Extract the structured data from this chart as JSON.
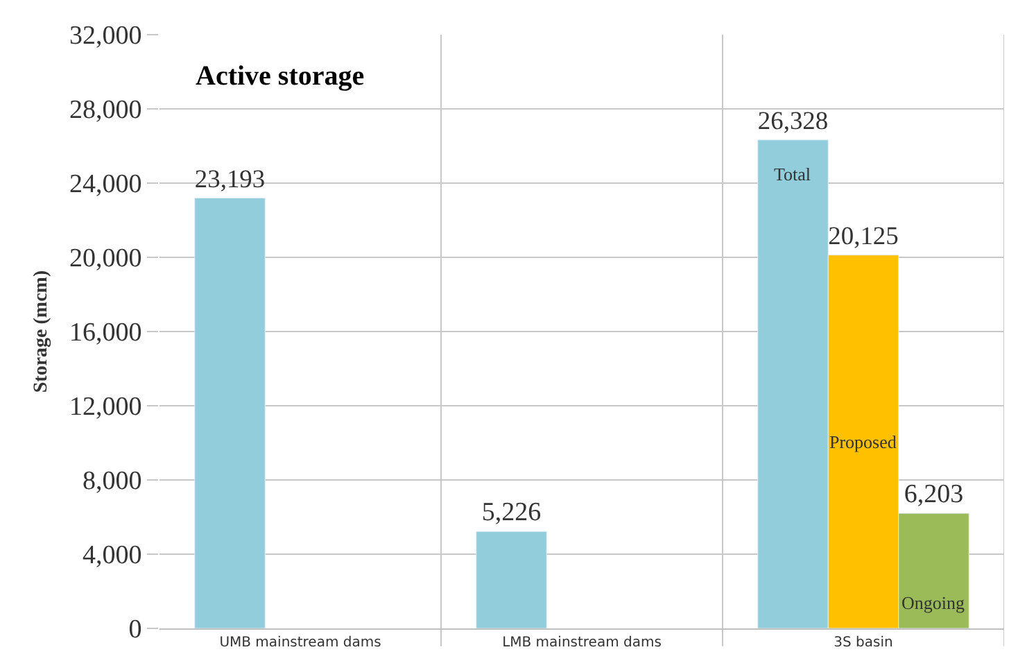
{
  "chart_data": {
    "type": "bar",
    "title": "Active storage",
    "ylabel": "Storage (mcm)",
    "categories": [
      "UMB mainstream dams",
      "LMB mainstream dams",
      "3S basin"
    ],
    "series": [
      {
        "name": "Total",
        "color": "#92cddc",
        "values": [
          23193,
          5226,
          26328
        ],
        "value_labels": [
          "23,193",
          "5,226",
          "26,328"
        ]
      },
      {
        "name": "Proposed",
        "color": "#ffc000",
        "values": [
          null,
          null,
          20125
        ],
        "value_labels": [
          null,
          null,
          "20,125"
        ]
      },
      {
        "name": "Ongoing",
        "color": "#9bbb59",
        "values": [
          null,
          null,
          6203
        ],
        "value_labels": [
          null,
          null,
          "6,203"
        ]
      }
    ],
    "ylim": [
      0,
      32000
    ],
    "yticks": [
      0,
      {
        "value": 4000,
        "label": "4,000"
      },
      {
        "value": 8000,
        "label": "8,000"
      },
      {
        "value": 12000,
        "label": "12,000"
      },
      {
        "value": 16000,
        "label": "16,000"
      },
      {
        "value": 20000,
        "label": "20,000"
      },
      {
        "value": 24000,
        "label": "24,000"
      },
      {
        "value": 28000,
        "label": "28,000"
      },
      {
        "value": 32000,
        "label": "32,000"
      }
    ],
    "grid": true,
    "legend": false
  }
}
